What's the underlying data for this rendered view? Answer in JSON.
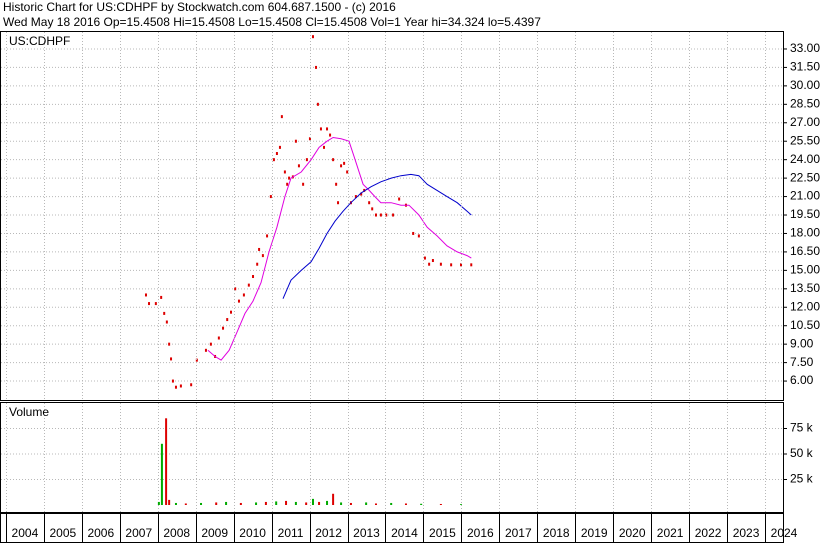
{
  "chart_data": [
    {
      "type": "scatter",
      "title": "Historic Chart for US:CDHPF by Stockwatch.com 604.687.1500 - (c) 2016",
      "subtitle": "Wed May 18 2016   Op=15.4508   Hi=15.4508   Lo=15.4508   Cl=15.4508   Vol=1   Year hi=34.324   lo=5.4397",
      "label": "US:CDHPF",
      "xlim": [
        2003.87,
        2024.5
      ],
      "ylim": [
        4.46,
        34.38
      ],
      "yticks": [
        {
          "value": 6,
          "label": "6.00"
        },
        {
          "value": 7.5,
          "label": "7.50"
        },
        {
          "value": 9,
          "label": "9.00"
        },
        {
          "value": 10.5,
          "label": "10.50"
        },
        {
          "value": 12,
          "label": "12.00"
        },
        {
          "value": 13.5,
          "label": "13.50"
        },
        {
          "value": 15,
          "label": "15.00"
        },
        {
          "value": 16.5,
          "label": "16.50"
        },
        {
          "value": 18,
          "label": "18.00"
        },
        {
          "value": 19.5,
          "label": "19.50"
        },
        {
          "value": 21,
          "label": "21.00"
        },
        {
          "value": 22.5,
          "label": "22.50"
        },
        {
          "value": 24,
          "label": "24.00"
        },
        {
          "value": 25.5,
          "label": "25.50"
        },
        {
          "value": 27,
          "label": "27.00"
        },
        {
          "value": 28.5,
          "label": "28.50"
        },
        {
          "value": 30,
          "label": "30.00"
        },
        {
          "value": 31.5,
          "label": "31.50"
        },
        {
          "value": 33,
          "label": "33.00"
        }
      ],
      "grid": true,
      "series": [
        {
          "style": "dots",
          "color": "#dd0000",
          "x": [
            2007.69,
            2007.77,
            2007.95,
            2008.09,
            2008.17,
            2008.24,
            2008.3,
            2008.35,
            2008.4,
            2008.48,
            2008.61,
            2008.88,
            2009.03,
            2009.27,
            2009.4,
            2009.51,
            2009.61,
            2009.72,
            2009.83,
            2009.93,
            2010.04,
            2010.14,
            2010.27,
            2010.4,
            2010.51,
            2010.62,
            2010.67,
            2010.77,
            2010.88,
            2010.98,
            2011.06,
            2011.14,
            2011.22,
            2011.27,
            2011.35,
            2011.41,
            2011.46,
            2011.56,
            2011.64,
            2011.72,
            2011.83,
            2011.93,
            2012.01,
            2012.09,
            2012.17,
            2012.22,
            2012.3,
            2012.38,
            2012.46,
            2012.54,
            2012.62,
            2012.7,
            2012.75,
            2012.83,
            2012.91,
            2012.99,
            2013.09,
            2013.22,
            2013.36,
            2013.44,
            2013.57,
            2013.65,
            2013.75,
            2013.88,
            2014.02,
            2014.2,
            2014.36,
            2014.54,
            2014.73,
            2014.88,
            2015.04,
            2015.15,
            2015.25,
            2015.46,
            2015.73,
            2015.99,
            2016.26
          ],
          "values": [
            13.0,
            12.3,
            12.3,
            12.8,
            11.5,
            10.8,
            9.0,
            7.8,
            6.0,
            5.5,
            5.6,
            5.7,
            7.7,
            8.5,
            9.0,
            8.0,
            9.5,
            10.3,
            11.0,
            11.6,
            13.5,
            12.5,
            13.0,
            13.8,
            14.5,
            15.5,
            16.7,
            16.2,
            17.8,
            21.0,
            24.0,
            24.5,
            25.0,
            27.5,
            23.0,
            22.0,
            22.5,
            22.6,
            25.5,
            23.5,
            22.0,
            24.0,
            25.7,
            34.0,
            31.5,
            28.5,
            26.5,
            25.0,
            26.5,
            26.0,
            24.0,
            22.0,
            20.5,
            23.5,
            23.7,
            23.0,
            20.5,
            21.0,
            21.2,
            21.5,
            20.5,
            20.0,
            19.5,
            19.5,
            19.5,
            19.5,
            20.8,
            20.3,
            18.0,
            17.8,
            16.0,
            15.5,
            15.8,
            15.5,
            15.45,
            15.45,
            15.45
          ]
        },
        {
          "style": "line",
          "color": "#e000e0",
          "x": [
            2009.32,
            2009.51,
            2009.67,
            2009.88,
            2010.09,
            2010.3,
            2010.51,
            2010.72,
            2010.93,
            2011.14,
            2011.35,
            2011.51,
            2011.78,
            2012.04,
            2012.25,
            2012.46,
            2012.62,
            2012.83,
            2013.04,
            2013.2,
            2013.41,
            2013.57,
            2013.72,
            2013.88,
            2014.15,
            2014.41,
            2014.62,
            2014.88,
            2015.1,
            2015.36,
            2015.62,
            2015.89,
            2016.15,
            2016.26
          ],
          "values": [
            8.5,
            8.0,
            7.7,
            8.5,
            10.0,
            11.5,
            12.5,
            14.0,
            16.5,
            18.5,
            21.0,
            22.5,
            23.0,
            24.0,
            25.0,
            25.5,
            25.8,
            25.7,
            25.5,
            24.0,
            22.0,
            21.5,
            21.0,
            20.5,
            20.5,
            20.3,
            20.3,
            19.5,
            18.5,
            17.8,
            17.0,
            16.5,
            16.2,
            16.0
          ]
        },
        {
          "style": "line",
          "color": "#0000cc",
          "x": [
            2011.3,
            2011.51,
            2011.78,
            2012.04,
            2012.25,
            2012.46,
            2012.67,
            2012.88,
            2013.09,
            2013.36,
            2013.62,
            2013.88,
            2014.15,
            2014.41,
            2014.67,
            2014.88,
            2015.1,
            2015.36,
            2015.62,
            2015.89,
            2016.15,
            2016.26
          ],
          "values": [
            12.7,
            14.2,
            15.0,
            15.7,
            16.8,
            18.0,
            19.0,
            19.8,
            20.5,
            21.3,
            21.8,
            22.2,
            22.5,
            22.7,
            22.8,
            22.7,
            22.0,
            21.5,
            21.0,
            20.5,
            19.8,
            19.5
          ]
        }
      ]
    },
    {
      "type": "bar",
      "label": "Volume",
      "xlim": [
        2003.87,
        2024.5
      ],
      "ylim": [
        0,
        100000
      ],
      "yticks": [
        {
          "value": 25000,
          "label": "25 k"
        },
        {
          "value": 50000,
          "label": "50 k"
        },
        {
          "value": 75000,
          "label": "75 k"
        }
      ],
      "xticks": [
        2004,
        2005,
        2006,
        2007,
        2008,
        2009,
        2010,
        2011,
        2012,
        2013,
        2014,
        2015,
        2016,
        2017,
        2018,
        2019,
        2020,
        2021,
        2022,
        2023,
        2024
      ],
      "grid": true,
      "x": [
        2008.03,
        2008.11,
        2008.22,
        2008.3,
        2008.48,
        2008.74,
        2009.14,
        2009.54,
        2009.8,
        2010.19,
        2010.59,
        2010.85,
        2011.12,
        2011.38,
        2011.64,
        2011.91,
        2012.09,
        2012.25,
        2012.46,
        2012.62,
        2012.83,
        2013.09,
        2013.49,
        2013.75,
        2014.15,
        2014.54,
        2014.94,
        2015.46,
        2015.99
      ],
      "values": [
        3000,
        60000,
        85000,
        5000,
        2000,
        1500,
        2000,
        2500,
        3000,
        2000,
        2500,
        3000,
        3500,
        4000,
        3000,
        2500,
        6000,
        3000,
        4000,
        11000,
        2500,
        2000,
        2500,
        1500,
        2000,
        1500,
        1200,
        1000,
        800
      ],
      "colors": [
        "#00aa00",
        "#00aa00",
        "#dd0000",
        "#dd0000",
        "#00aa00",
        "#dd0000",
        "#00aa00",
        "#dd0000",
        "#00aa00",
        "#dd0000",
        "#00aa00",
        "#dd0000",
        "#00aa00",
        "#dd0000",
        "#00aa00",
        "#dd0000",
        "#00aa00",
        "#dd0000",
        "#00aa00",
        "#dd0000",
        "#00aa00",
        "#dd0000",
        "#00aa00",
        "#dd0000",
        "#00aa00",
        "#dd0000",
        "#00aa00",
        "#dd0000",
        "#00aa00"
      ]
    }
  ]
}
